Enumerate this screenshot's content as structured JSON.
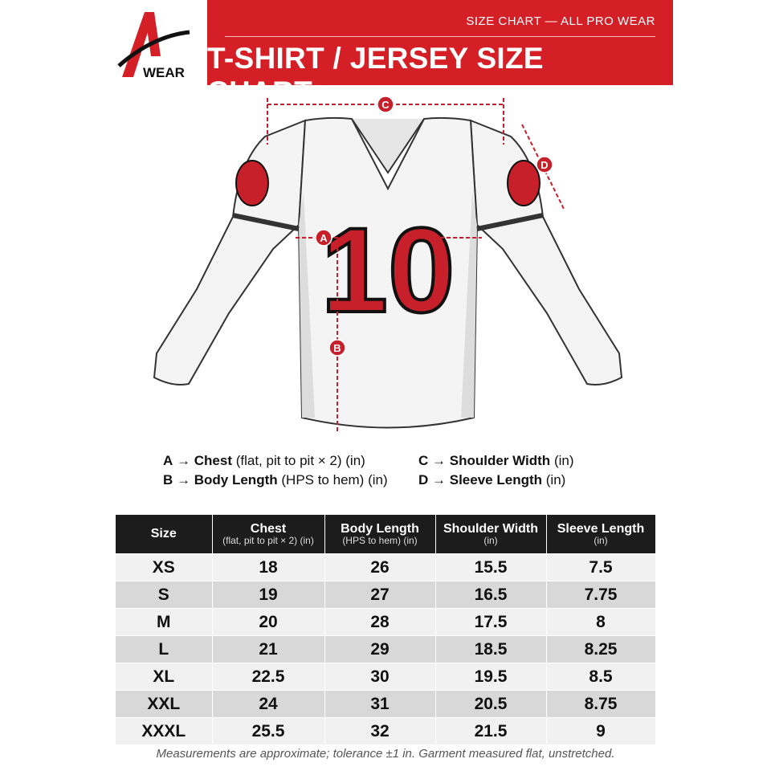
{
  "header": {
    "logo_text": "WEAR",
    "subtitle": "SIZE CHART — ALL PRO WEAR",
    "title": "T-SHIRT / JERSEY SIZE CHART"
  },
  "diagram": {
    "jersey_number": "10",
    "markers": [
      "A",
      "B",
      "C",
      "D"
    ]
  },
  "legend": [
    {
      "key": "A",
      "arrow": "→",
      "name": "Chest",
      "note": "(flat, pit to pit × 2) (in)"
    },
    {
      "key": "B",
      "arrow": "→",
      "name": "Body Length",
      "note": "(HPS to hem) (in)"
    },
    {
      "key": "C",
      "arrow": "→",
      "name": "Shoulder Width",
      "note": "(in)"
    },
    {
      "key": "D",
      "arrow": "→",
      "name": "Sleeve Length",
      "note": "(in)"
    }
  ],
  "table": {
    "columns": [
      {
        "title": "Size"
      },
      {
        "title": "Chest",
        "sub": "(flat, pit to pit × 2) (in)"
      },
      {
        "title": "Body Length",
        "sub": "(HPS to hem) (in)"
      },
      {
        "title": "Shoulder Width",
        "sub": "(in)"
      },
      {
        "title": "Sleeve Length",
        "sub": "(in)"
      }
    ],
    "rows": [
      [
        "XS",
        18,
        26,
        15.5,
        7.5
      ],
      [
        "S",
        19,
        27,
        16.5,
        7.75
      ],
      [
        "M",
        20,
        28,
        17.5,
        8
      ],
      [
        "L",
        21,
        29,
        18.5,
        8.25
      ],
      [
        "XL",
        22.5,
        30,
        19.5,
        8.5
      ],
      [
        "XXL",
        24,
        31,
        20.5,
        8.75
      ],
      [
        "XXXL",
        25.5,
        32,
        21.5,
        9
      ]
    ]
  },
  "footnote": "Measurements are approximate; tolerance ±1 in. Garment measured flat, unstretched."
}
